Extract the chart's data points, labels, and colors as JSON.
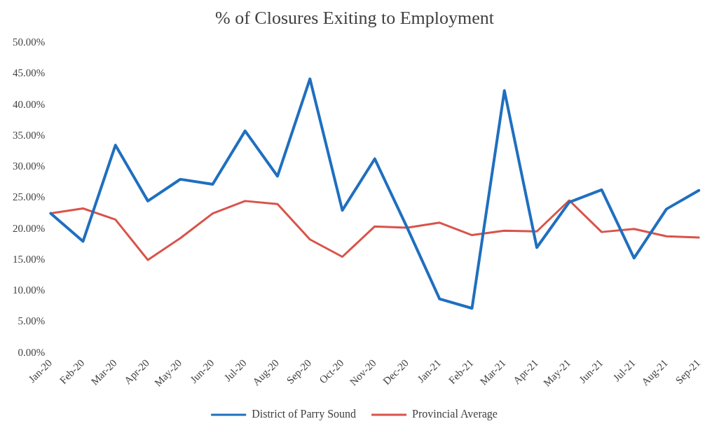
{
  "chart_data": {
    "type": "line",
    "title": "% of Closures Exiting to Employment",
    "categories": [
      "Jan-20",
      "Feb-20",
      "Mar-20",
      "Apr-20",
      "May-20",
      "Jun-20",
      "Jul-20",
      "Aug-20",
      "Sep-20",
      "Oct-20",
      "Nov-20",
      "Dec-20",
      "Jan-21",
      "Feb-21",
      "Mar-21",
      "Apr-21",
      "May-21",
      "Jun-21",
      "Jul-21",
      "Aug-21",
      "Sep-21"
    ],
    "series": [
      {
        "name": "District of Parry Sound",
        "color": "#1f6fbf",
        "values": [
          22.5,
          18,
          33.5,
          24.5,
          28,
          27.2,
          35.8,
          28.5,
          44.2,
          23,
          31.3,
          20.2,
          8.7,
          7.2,
          42.3,
          17,
          24.3,
          26.3,
          15.3,
          23.2,
          26.2
        ]
      },
      {
        "name": "Provincial Average",
        "color": "#d9534a",
        "values": [
          22.5,
          23.3,
          21.5,
          15,
          18.5,
          22.5,
          24.5,
          24,
          18.3,
          15.5,
          20.4,
          20.2,
          21,
          19,
          19.7,
          19.6,
          24.6,
          19.5,
          20,
          18.8,
          18.6
        ]
      }
    ],
    "ylim": [
      0,
      50
    ],
    "yticks": [
      {
        "value": 0,
        "label": "0.00%"
      },
      {
        "value": 5,
        "label": "5.00%"
      },
      {
        "value": 10,
        "label": "10.00%"
      },
      {
        "value": 15,
        "label": "15.00%"
      },
      {
        "value": 20,
        "label": "20.00%"
      },
      {
        "value": 25,
        "label": "25.00%"
      },
      {
        "value": 30,
        "label": "30.00%"
      },
      {
        "value": 35,
        "label": "35.00%"
      },
      {
        "value": 40,
        "label": "40.00%"
      },
      {
        "value": 45,
        "label": "45.00%"
      },
      {
        "value": 50,
        "label": "50.00%"
      }
    ],
    "grid": false,
    "legend": "bottom",
    "marker": "none",
    "line_style": "solid"
  }
}
